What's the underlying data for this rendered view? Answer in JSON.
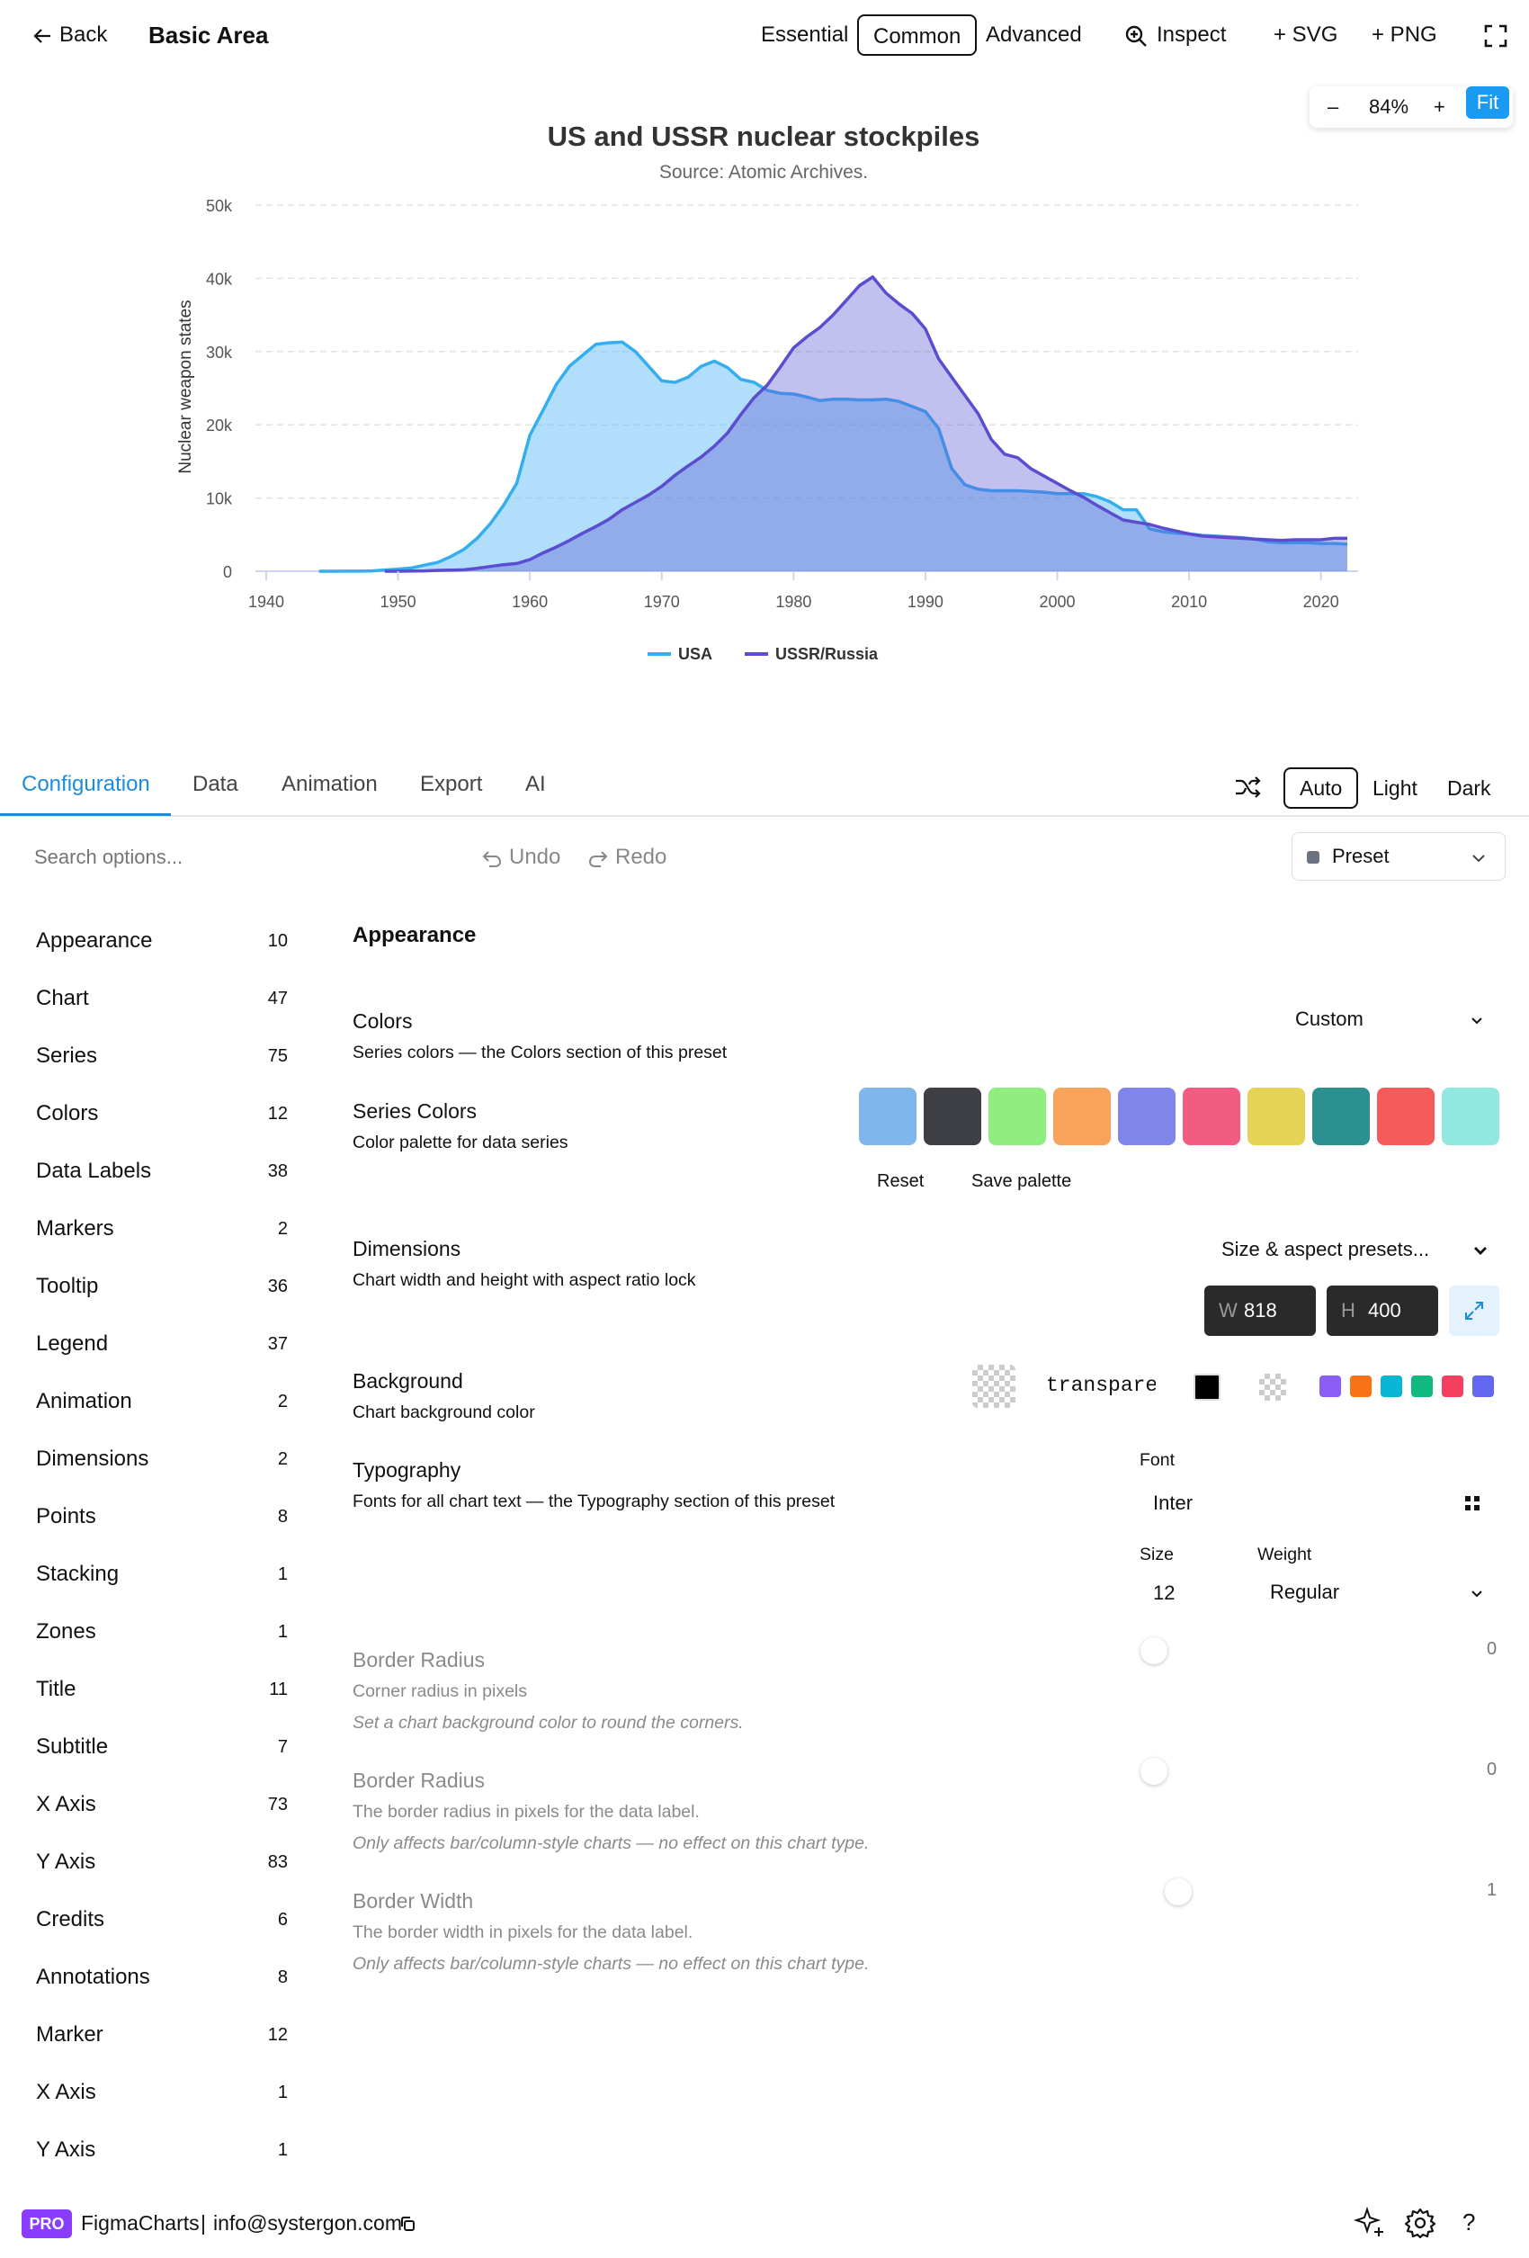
{
  "header": {
    "back_label": "Back",
    "title": "Basic Area",
    "modes": [
      "Essential",
      "Common",
      "Advanced"
    ],
    "selected_mode": "Common",
    "inspect_label": "Inspect",
    "svg_label": "+ SVG",
    "png_label": "+ PNG"
  },
  "zoom": {
    "minus": "–",
    "level": "84%",
    "plus": "+",
    "fit": "Fit"
  },
  "chart_data": {
    "type": "area",
    "title": "US and USSR nuclear stockpiles",
    "subtitle": "Source: Atomic Archives.",
    "ylabel": "Nuclear weapon states",
    "xlabel": "",
    "xlim": [
      1940,
      2022
    ],
    "ylim": [
      0,
      50000
    ],
    "x_ticks": [
      1940,
      1950,
      1960,
      1970,
      1980,
      1990,
      2000,
      2010,
      2020
    ],
    "y_ticks": [
      0,
      10000,
      20000,
      30000,
      40000,
      50000
    ],
    "y_tick_labels": [
      "0",
      "10k",
      "20k",
      "30k",
      "40k",
      "50k"
    ],
    "grid": "horizontal dashed",
    "legend": "bottom-center",
    "series": [
      {
        "name": "USA",
        "color": "#35aef0",
        "points": [
          [
            1944,
            0
          ],
          [
            1945,
            2
          ],
          [
            1946,
            9
          ],
          [
            1947,
            13
          ],
          [
            1948,
            50
          ],
          [
            1949,
            170
          ],
          [
            1950,
            300
          ],
          [
            1951,
            440
          ],
          [
            1952,
            840
          ],
          [
            1953,
            1200
          ],
          [
            1954,
            2000
          ],
          [
            1955,
            3000
          ],
          [
            1956,
            4500
          ],
          [
            1957,
            6500
          ],
          [
            1958,
            9000
          ],
          [
            1959,
            12000
          ],
          [
            1960,
            18600
          ],
          [
            1961,
            22000
          ],
          [
            1962,
            25500
          ],
          [
            1963,
            28000
          ],
          [
            1964,
            29500
          ],
          [
            1965,
            31000
          ],
          [
            1966,
            31200
          ],
          [
            1967,
            31300
          ],
          [
            1968,
            30000
          ],
          [
            1969,
            28000
          ],
          [
            1970,
            26000
          ],
          [
            1971,
            25800
          ],
          [
            1972,
            26500
          ],
          [
            1973,
            28000
          ],
          [
            1974,
            28700
          ],
          [
            1975,
            27800
          ],
          [
            1976,
            26200
          ],
          [
            1977,
            25800
          ],
          [
            1978,
            24700
          ],
          [
            1979,
            24300
          ],
          [
            1980,
            24200
          ],
          [
            1981,
            23800
          ],
          [
            1982,
            23300
          ],
          [
            1983,
            23500
          ],
          [
            1984,
            23500
          ],
          [
            1985,
            23400
          ],
          [
            1986,
            23400
          ],
          [
            1987,
            23500
          ],
          [
            1988,
            23200
          ],
          [
            1989,
            22500
          ],
          [
            1990,
            21800
          ],
          [
            1991,
            19500
          ],
          [
            1992,
            14000
          ],
          [
            1993,
            11800
          ],
          [
            1994,
            11200
          ],
          [
            1995,
            11000
          ],
          [
            1996,
            11000
          ],
          [
            1997,
            11000
          ],
          [
            1998,
            10900
          ],
          [
            1999,
            10800
          ],
          [
            2000,
            10600
          ],
          [
            2001,
            10600
          ],
          [
            2002,
            10600
          ],
          [
            2003,
            10200
          ],
          [
            2004,
            9500
          ],
          [
            2005,
            8400
          ],
          [
            2006,
            8400
          ],
          [
            2007,
            5800
          ],
          [
            2008,
            5400
          ],
          [
            2009,
            5200
          ],
          [
            2010,
            5100
          ],
          [
            2011,
            4900
          ],
          [
            2012,
            4800
          ],
          [
            2013,
            4700
          ],
          [
            2014,
            4600
          ],
          [
            2015,
            4400
          ],
          [
            2016,
            4000
          ],
          [
            2017,
            3900
          ],
          [
            2018,
            3900
          ],
          [
            2019,
            3900
          ],
          [
            2020,
            3800
          ],
          [
            2021,
            3800
          ],
          [
            2022,
            3700
          ]
        ]
      },
      {
        "name": "USSR/Russia",
        "color": "#5a4dd0",
        "points": [
          [
            1949,
            1
          ],
          [
            1950,
            5
          ],
          [
            1951,
            25
          ],
          [
            1952,
            50
          ],
          [
            1953,
            120
          ],
          [
            1954,
            150
          ],
          [
            1955,
            200
          ],
          [
            1956,
            400
          ],
          [
            1957,
            650
          ],
          [
            1958,
            900
          ],
          [
            1959,
            1060
          ],
          [
            1960,
            1600
          ],
          [
            1961,
            2500
          ],
          [
            1962,
            3300
          ],
          [
            1963,
            4200
          ],
          [
            1964,
            5200
          ],
          [
            1965,
            6100
          ],
          [
            1966,
            7100
          ],
          [
            1967,
            8400
          ],
          [
            1968,
            9400
          ],
          [
            1969,
            10400
          ],
          [
            1970,
            11600
          ],
          [
            1971,
            13100
          ],
          [
            1972,
            14400
          ],
          [
            1973,
            15600
          ],
          [
            1974,
            17100
          ],
          [
            1975,
            18900
          ],
          [
            1976,
            21400
          ],
          [
            1977,
            23700
          ],
          [
            1978,
            25400
          ],
          [
            1979,
            27900
          ],
          [
            1980,
            30500
          ],
          [
            1981,
            32000
          ],
          [
            1982,
            33300
          ],
          [
            1983,
            35000
          ],
          [
            1984,
            37000
          ],
          [
            1985,
            39000
          ],
          [
            1986,
            40200
          ],
          [
            1987,
            38000
          ],
          [
            1988,
            36500
          ],
          [
            1989,
            35200
          ],
          [
            1990,
            33100
          ],
          [
            1991,
            29000
          ],
          [
            1992,
            26500
          ],
          [
            1993,
            24000
          ],
          [
            1994,
            21500
          ],
          [
            1995,
            18000
          ],
          [
            1996,
            16000
          ],
          [
            1997,
            15500
          ],
          [
            1998,
            14000
          ],
          [
            1999,
            13000
          ],
          [
            2000,
            12000
          ],
          [
            2001,
            11000
          ],
          [
            2002,
            10100
          ],
          [
            2003,
            9000
          ],
          [
            2004,
            8000
          ],
          [
            2005,
            7000
          ],
          [
            2006,
            6700
          ],
          [
            2007,
            6400
          ],
          [
            2008,
            5900
          ],
          [
            2009,
            5500
          ],
          [
            2010,
            5100
          ],
          [
            2011,
            4800
          ],
          [
            2012,
            4700
          ],
          [
            2013,
            4600
          ],
          [
            2014,
            4500
          ],
          [
            2015,
            4400
          ],
          [
            2016,
            4300
          ],
          [
            2017,
            4200
          ],
          [
            2018,
            4300
          ],
          [
            2019,
            4300
          ],
          [
            2020,
            4300
          ],
          [
            2021,
            4500
          ],
          [
            2022,
            4500
          ]
        ]
      }
    ]
  },
  "tabs": [
    "Configuration",
    "Data",
    "Animation",
    "Export",
    "AI"
  ],
  "active_tab": "Configuration",
  "theme": {
    "options": [
      "Auto",
      "Light",
      "Dark"
    ],
    "selected": "Auto"
  },
  "toolbar": {
    "search_placeholder": "Search options...",
    "undo": "Undo",
    "redo": "Redo",
    "preset": "Preset"
  },
  "sidebar": [
    {
      "label": "Appearance",
      "count": "10"
    },
    {
      "label": "Chart",
      "count": "47"
    },
    {
      "label": "Series",
      "count": "75"
    },
    {
      "label": "Colors",
      "count": "12"
    },
    {
      "label": "Data Labels",
      "count": "38"
    },
    {
      "label": "Markers",
      "count": "2"
    },
    {
      "label": "Tooltip",
      "count": "36"
    },
    {
      "label": "Legend",
      "count": "37"
    },
    {
      "label": "Animation",
      "count": "2"
    },
    {
      "label": "Dimensions",
      "count": "2"
    },
    {
      "label": "Points",
      "count": "8"
    },
    {
      "label": "Stacking",
      "count": "1"
    },
    {
      "label": "Zones",
      "count": "1"
    },
    {
      "label": "Title",
      "count": "11"
    },
    {
      "label": "Subtitle",
      "count": "7"
    },
    {
      "label": "X Axis",
      "count": "73"
    },
    {
      "label": "Y Axis",
      "count": "83"
    },
    {
      "label": "Credits",
      "count": "6"
    },
    {
      "label": "Annotations",
      "count": "8"
    },
    {
      "label": "Marker",
      "count": "12"
    },
    {
      "label": "X Axis",
      "count": "1"
    },
    {
      "label": "Y Axis",
      "count": "1"
    }
  ],
  "panel": {
    "heading": "Appearance",
    "colors": {
      "title": "Colors",
      "desc": "Series colors — the Colors section of this preset",
      "value": "Custom"
    },
    "series_colors": {
      "title": "Series Colors",
      "desc": "Color palette for data series",
      "swatches": [
        "#7fb6ec",
        "#3f3f46",
        "#90ee7e",
        "#f7a35c",
        "#8085e9",
        "#f15c80",
        "#e4d354",
        "#2b908f",
        "#f45b5b",
        "#91e8e1"
      ],
      "reset": "Reset",
      "save": "Save palette"
    },
    "dimensions": {
      "title": "Dimensions",
      "desc": "Chart width and height with aspect ratio lock",
      "preset": "Size & aspect presets...",
      "w_label": "W",
      "w": "818",
      "h_label": "H",
      "h": "400"
    },
    "background": {
      "title": "Background",
      "desc": "Chart background color",
      "value": "transparent",
      "swatches": [
        "#8b5cf6",
        "#f97316",
        "#06b6d4",
        "#10b981",
        "#f43f5e",
        "#6366f1"
      ]
    },
    "typography": {
      "title": "Typography",
      "desc": "Fonts for all chart text — the Typography section of this preset",
      "font_label": "Font",
      "font": "Inter",
      "size_label": "Size",
      "size": "12",
      "weight_label": "Weight",
      "weight": "Regular"
    },
    "border_radius": {
      "title": "Border Radius",
      "desc": "Corner radius in pixels",
      "note": "Set a chart background color to round the corners.",
      "value": "0"
    },
    "label_border_radius": {
      "title": "Border Radius",
      "desc": "The border radius in pixels for the data label.",
      "note": "Only affects bar/column-style charts — no effect on this chart type.",
      "value": "0"
    },
    "label_border_width": {
      "title": "Border Width",
      "desc": "The border width in pixels for the data label.",
      "note": "Only affects bar/column-style charts — no effect on this chart type.",
      "value": "1"
    }
  },
  "footer": {
    "badge": "PRO",
    "brand": "FigmaCharts",
    "separator": "|",
    "email": "info@systergon.com",
    "help": "?"
  }
}
